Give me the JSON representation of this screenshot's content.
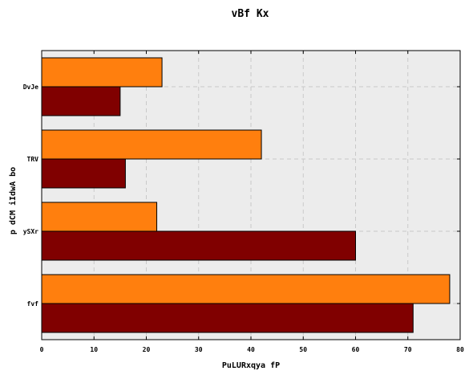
{
  "chart_data": {
    "type": "bar",
    "orientation": "horizontal",
    "title": "vBf Kx",
    "xlabel": "PuLURxqya fP",
    "ylabel": "p dCM iIdwA bo",
    "categories": [
      "fvf",
      "ySXr",
      "TRV",
      "DvJe"
    ],
    "series": [
      {
        "values": [
          71,
          60,
          16,
          15
        ],
        "color": "#800000"
      },
      {
        "values": [
          78,
          22,
          42,
          23
        ],
        "color": "#ff7f0e"
      }
    ],
    "xlim": [
      0,
      80
    ],
    "xticks": [
      0,
      10,
      20,
      30,
      40,
      50,
      60,
      70,
      80
    ],
    "grid": true,
    "plot_background": "#ececec",
    "grid_color": "#c9c9c9"
  }
}
